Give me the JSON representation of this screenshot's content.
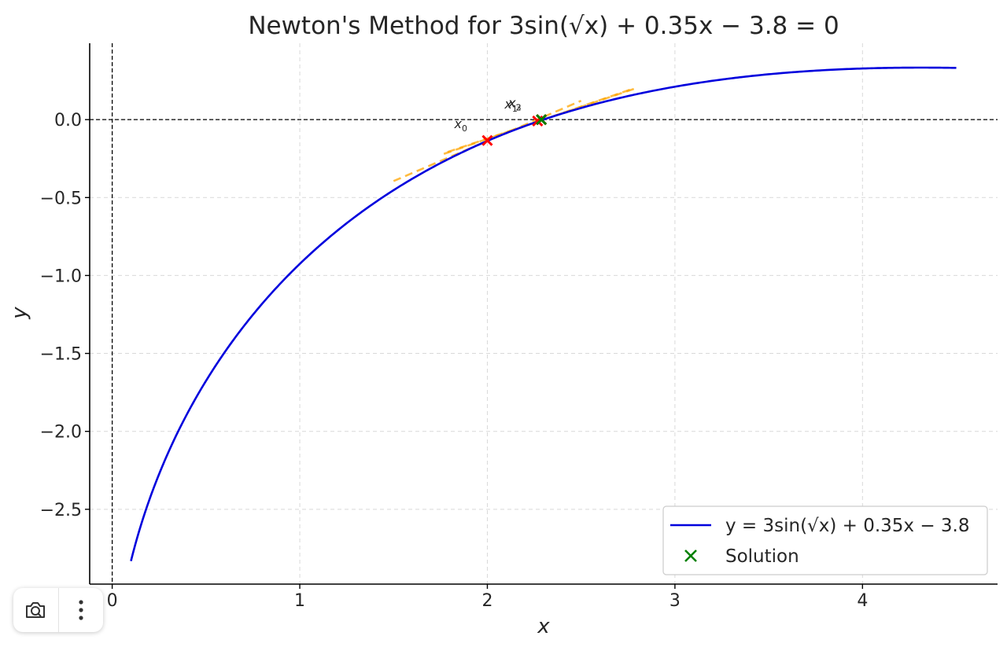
{
  "chart_data": {
    "type": "line",
    "title": "Newton's Method for 3sin(√x) + 0.35x − 3.8 = 0",
    "xlabel": "x",
    "ylabel": "y",
    "xlim": [
      -0.12,
      4.72
    ],
    "ylim": [
      -2.98,
      0.49
    ],
    "x_ticks": [
      0,
      1,
      2,
      3,
      4
    ],
    "y_ticks": [
      0.0,
      -0.5,
      -1.0,
      -1.5,
      -2.0,
      -2.5
    ],
    "x_tick_labels": [
      "0",
      "1",
      "2",
      "3",
      "4"
    ],
    "y_tick_labels": [
      "0.0",
      "−0.5",
      "−1.0",
      "−1.5",
      "−2.0",
      "−2.5"
    ],
    "grid": true,
    "function": {
      "a": 3,
      "b": 0.35,
      "c": -3.8,
      "x_range": [
        0.1,
        4.5
      ]
    },
    "series": [
      {
        "name": "y = 3sin(√x) + 0.35x − 3.8",
        "color": "#0000dd"
      }
    ],
    "iterations": [
      {
        "label": "x",
        "sub": "0",
        "x": 2.0,
        "y": -0.134
      },
      {
        "label": "x",
        "sub": "1",
        "x": 2.268,
        "y": -0.009
      },
      {
        "label": "x",
        "sub": "2",
        "x": 2.288,
        "y": -0.0001
      },
      {
        "label": "x",
        "sub": "3",
        "x": 2.288,
        "y": 0.0
      }
    ],
    "tangent_color": "#ffa500",
    "iteration_marker_color": "#ff0000",
    "solution": {
      "name": "Solution",
      "x": 2.288,
      "y": 0.0,
      "color": "#008000"
    },
    "legend": {
      "position": "lower-right"
    }
  },
  "toolbar": {
    "camera_icon": "camera-icon",
    "more_icon": "more-vert-icon"
  }
}
